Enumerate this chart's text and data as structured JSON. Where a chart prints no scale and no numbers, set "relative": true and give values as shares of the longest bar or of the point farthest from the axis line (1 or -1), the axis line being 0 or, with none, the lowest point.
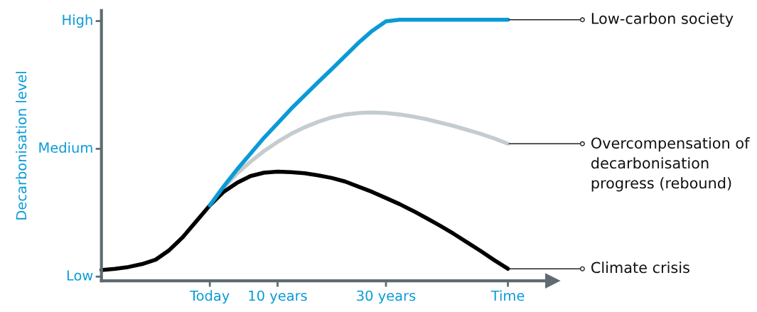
{
  "chart_data": {
    "type": "line",
    "ylabel": "Decarbonisation level",
    "relative": true,
    "categories": [
      null,
      null,
      null,
      null,
      null,
      null,
      null,
      null,
      "Today",
      null,
      null,
      null,
      null,
      "10 years",
      null,
      null,
      null,
      null,
      null,
      null,
      null,
      "30 years",
      null,
      null,
      null,
      null,
      null,
      null,
      null,
      null,
      "Time"
    ],
    "series": [
      {
        "name": "Overcompensation of\ndecarbonisation\nprogress (rebound)",
        "color": "#c5ccd0",
        "values": [
          null,
          null,
          null,
          null,
          null,
          null,
          null,
          null,
          0.289,
          0.355,
          0.411,
          0.456,
          0.497,
          0.532,
          0.563,
          0.588,
          0.609,
          0.626,
          0.637,
          0.643,
          0.645,
          0.643,
          0.637,
          0.629,
          0.619,
          0.606,
          0.593,
          0.578,
          0.563,
          0.545,
          0.525
        ]
      },
      {
        "name": "Climate crisis",
        "color": "#000000",
        "values": [
          0.041,
          0.046,
          0.053,
          0.064,
          0.081,
          0.117,
          0.167,
          0.228,
          0.289,
          0.34,
          0.375,
          0.401,
          0.414,
          0.418,
          0.416,
          0.412,
          0.404,
          0.394,
          0.38,
          0.36,
          0.34,
          0.317,
          0.294,
          0.268,
          0.24,
          0.211,
          0.18,
          0.147,
          0.114,
          0.079,
          0.046
        ]
      },
      {
        "name": "Low-carbon society",
        "color": "#0a9ad7",
        "values": [
          null,
          null,
          null,
          null,
          null,
          null,
          null,
          null,
          0.289,
          0.36,
          0.426,
          0.487,
          0.548,
          0.603,
          0.659,
          0.71,
          0.761,
          0.811,
          0.862,
          0.913,
          0.958,
          0.994,
          1,
          1,
          1,
          1,
          1,
          1,
          1,
          1,
          1
        ]
      }
    ],
    "annotations": [
      "Low",
      "Medium",
      "High"
    ]
  }
}
